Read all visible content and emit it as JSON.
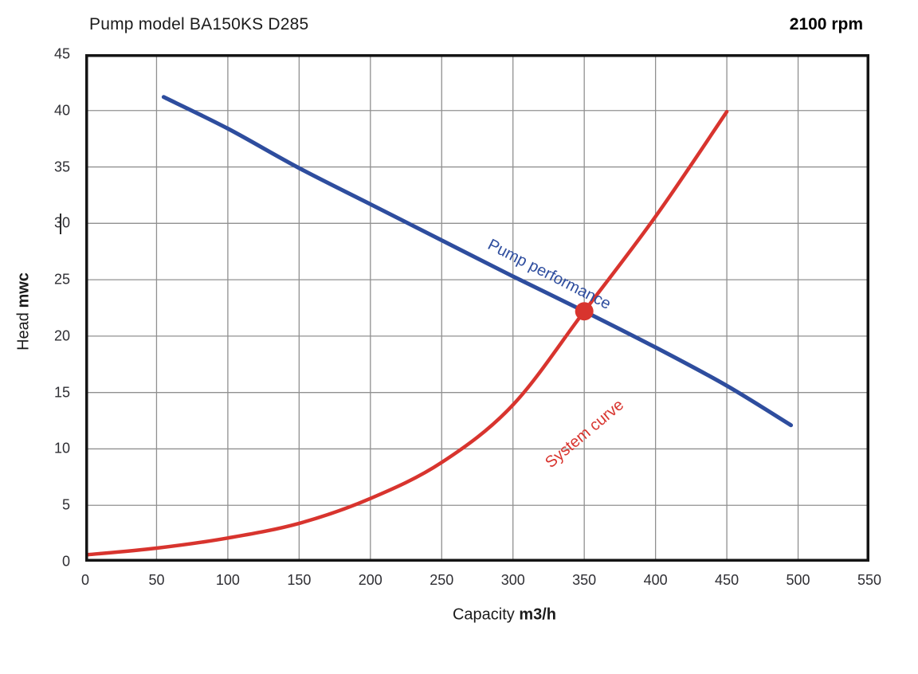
{
  "header": {
    "title": "Pump model BA150KS D285",
    "rpm": "2100 rpm"
  },
  "axes": {
    "x": {
      "title_regular": "Capacity",
      "title_bold": "m3/h",
      "ticks": [
        0,
        50,
        100,
        150,
        200,
        250,
        300,
        350,
        400,
        450,
        500,
        550
      ]
    },
    "y": {
      "title_regular": "Head",
      "title_bold": "mwc",
      "ticks": [
        0,
        5,
        10,
        15,
        20,
        25,
        30,
        35,
        40,
        45
      ]
    }
  },
  "chart_data": {
    "type": "line",
    "title": "Pump model BA150KS D285",
    "annotation": "2100 rpm",
    "xlabel": "Capacity m3/h",
    "ylabel": "Head mwc",
    "xlim": [
      0,
      550
    ],
    "ylim": [
      0,
      45
    ],
    "x_tick_step": 50,
    "y_tick_step": 5,
    "grid": true,
    "legend_position": "inline-rotated-labels",
    "series": [
      {
        "name": "Pump performance",
        "color": "#2e4d9e",
        "x": [
          55,
          100,
          150,
          200,
          250,
          300,
          350,
          400,
          450,
          495
        ],
        "y": [
          41.2,
          38.4,
          34.9,
          31.7,
          28.5,
          25.3,
          22.2,
          19.0,
          15.6,
          12.1
        ]
      },
      {
        "name": "System curve",
        "color": "#d8342e",
        "x": [
          0,
          50,
          100,
          150,
          200,
          250,
          300,
          350,
          400,
          450
        ],
        "y": [
          0.6,
          1.2,
          2.1,
          3.4,
          5.6,
          8.8,
          13.9,
          22.2,
          30.6,
          39.9
        ]
      }
    ],
    "operating_point": {
      "x": 350,
      "y": 22.2,
      "color": "#d8342e"
    }
  },
  "colors": {
    "pump_curve": "#2e4d9e",
    "system_curve": "#d8342e",
    "grid": "#909090",
    "plot_border": "#141414"
  }
}
